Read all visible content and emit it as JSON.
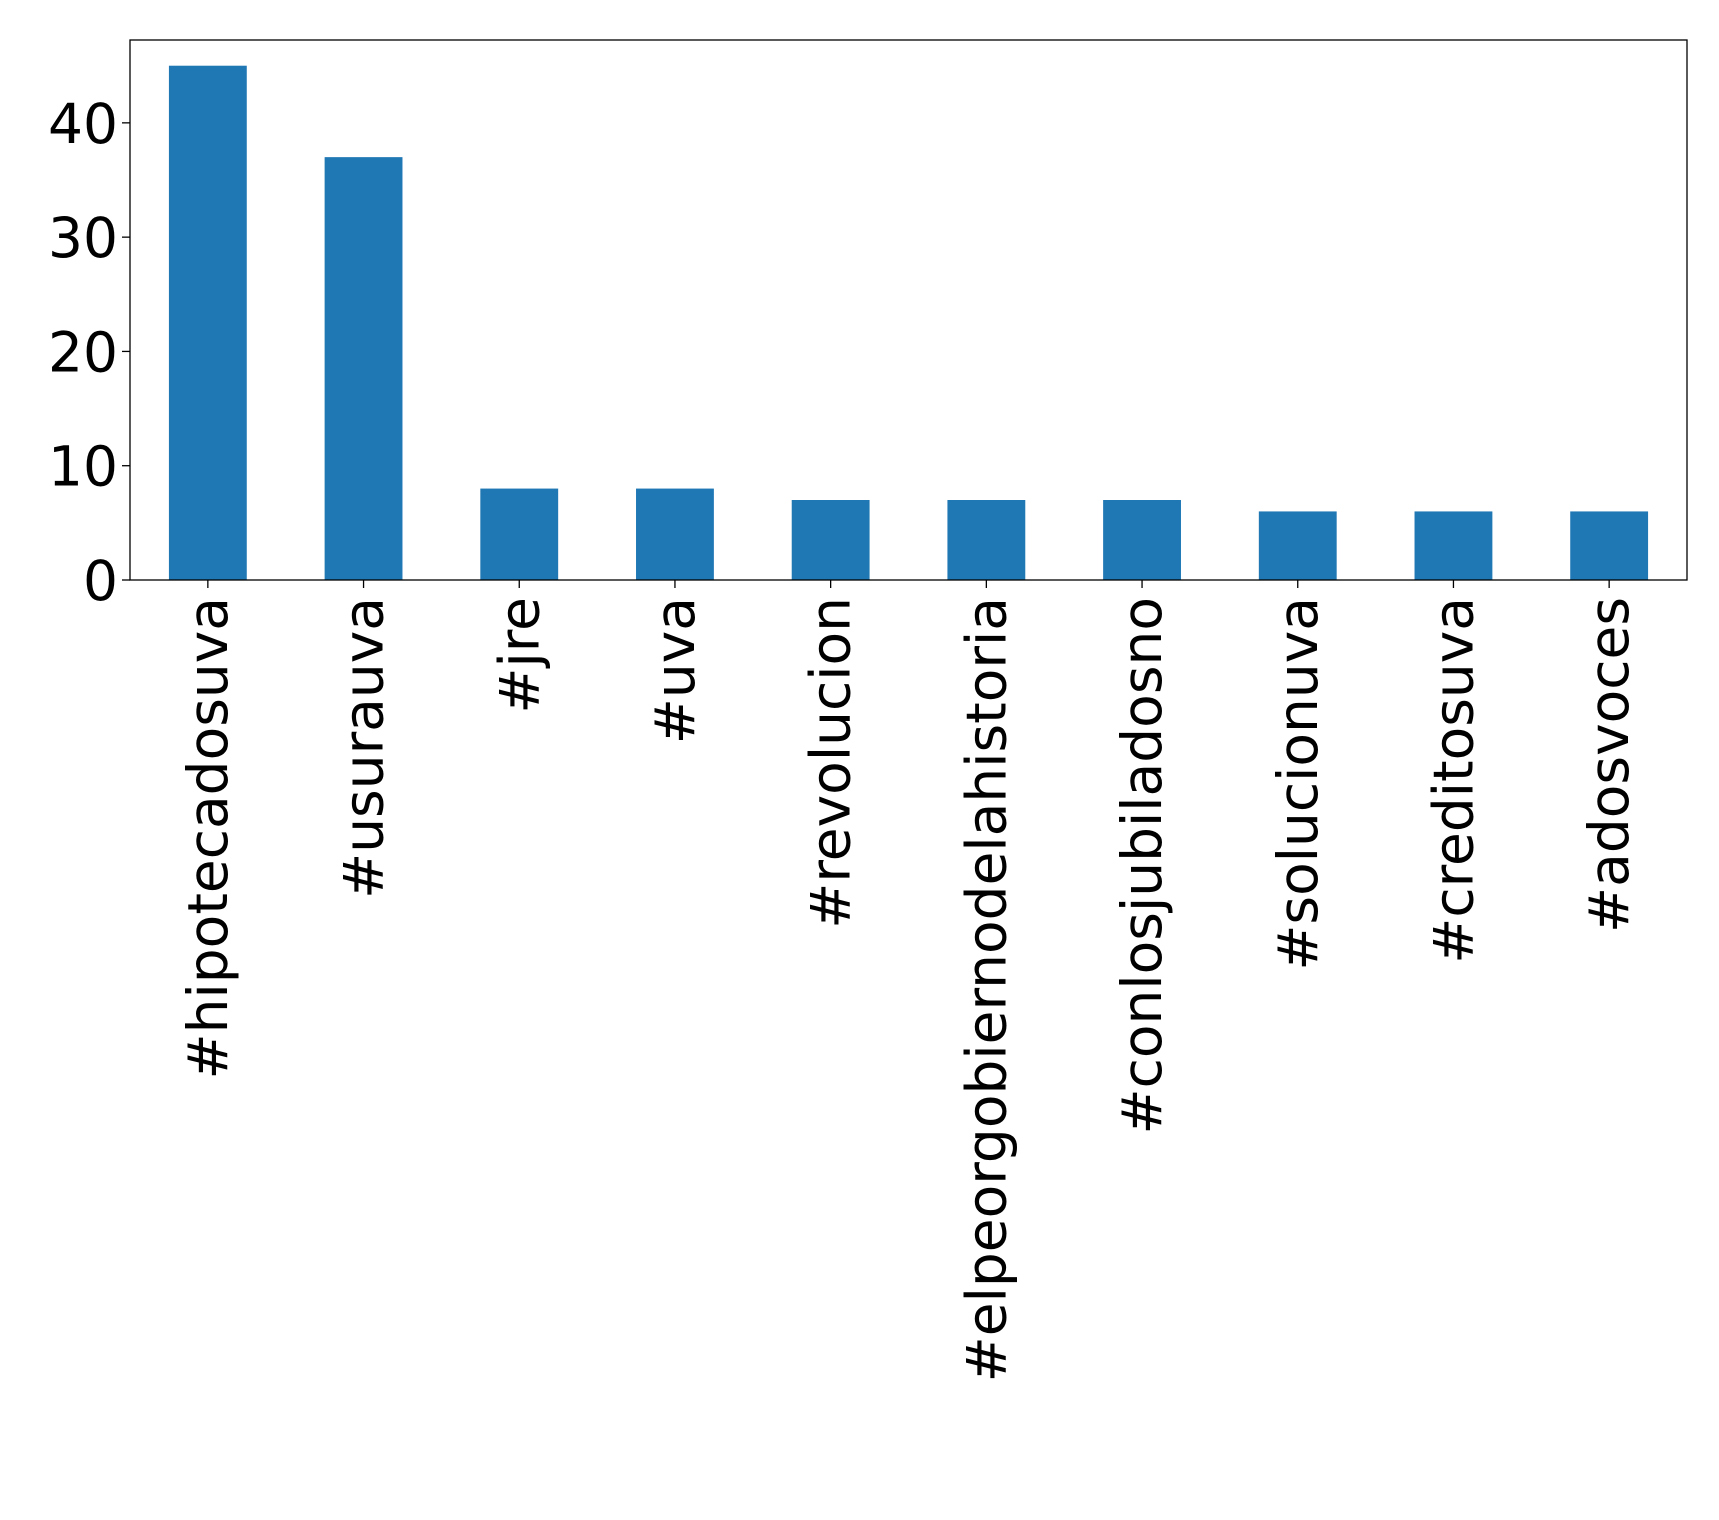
{
  "chart_data": {
    "type": "bar",
    "title": "",
    "xlabel": "",
    "ylabel": "",
    "categories": [
      "#hipotecadosuva",
      "#usurauva",
      "#jre",
      "#uva",
      "#revolucion",
      "#elpeorgobiernodelahistoria",
      "#conlosjubiladosno",
      "#solucionuva",
      "#creditosuva",
      "#adosvoces"
    ],
    "values": [
      45,
      37,
      8,
      8,
      7,
      7,
      7,
      6,
      6,
      6
    ],
    "ylim": [
      0,
      47.25
    ],
    "yticks": [
      0,
      10,
      20,
      30,
      40
    ],
    "grid": false,
    "legend": "none",
    "bar_color": "#1f77b4"
  }
}
